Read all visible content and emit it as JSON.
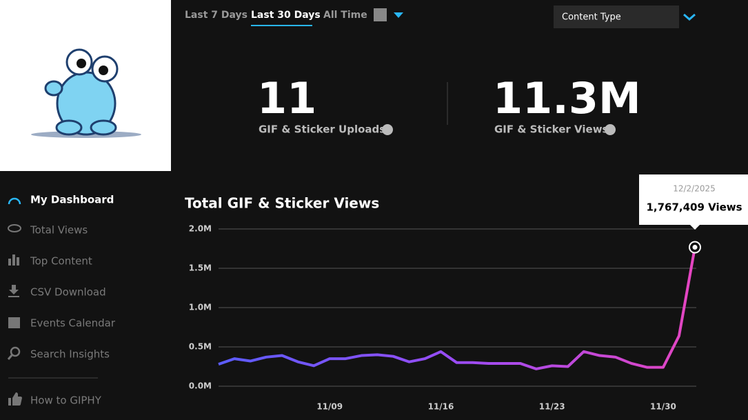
{
  "sidebar": {
    "nav": [
      "My Dashboard",
      "Total Views",
      "Top Content",
      "CSV Download",
      "Events Calendar",
      "Search Insights",
      "How to GIPHY"
    ]
  },
  "tabs": [
    "Last 7 Days",
    "Last 30 Days",
    "All Time"
  ],
  "dropdown": "Content Type",
  "stats": [
    {
      "value": "11",
      "label": "GIF & Sticker Uploads"
    },
    {
      "value": "11.3M",
      "label": "GIF & Sticker Views"
    }
  ],
  "chart_data": {
    "type": "line",
    "title": "Total GIF & Sticker Views",
    "categories": [
      null,
      null,
      null,
      null,
      null,
      null,
      null,
      "11/09",
      null,
      null,
      null,
      null,
      null,
      null,
      "11/16",
      null,
      null,
      null,
      null,
      null,
      null,
      "11/23",
      null,
      null,
      null,
      null,
      null,
      null,
      "11/30",
      null,
      null
    ],
    "values": [
      280000,
      350000,
      320000,
      370000,
      390000,
      310000,
      260000,
      350000,
      350000,
      390000,
      400000,
      380000,
      310000,
      350000,
      440000,
      300000,
      300000,
      290000,
      290000,
      290000,
      220000,
      260000,
      250000,
      440000,
      390000,
      370000,
      290000,
      240000,
      240000,
      640000,
      1767409
    ],
    "colors": [
      "#5b5cff",
      "#9a4cf5",
      "#e545c0"
    ],
    "ylim": [
      0,
      2000000
    ],
    "yticks": [
      {
        "value": 0,
        "label": "0.0M"
      },
      {
        "value": 500000,
        "label": "0.5M"
      },
      {
        "value": 1000000,
        "label": "1.0M"
      },
      {
        "value": 1500000,
        "label": "1.5M"
      },
      {
        "value": 2000000,
        "label": "2.0M"
      }
    ],
    "grid": true,
    "tooltip": {
      "date": "12/2/2025",
      "label": "1,767,409 Views"
    }
  }
}
